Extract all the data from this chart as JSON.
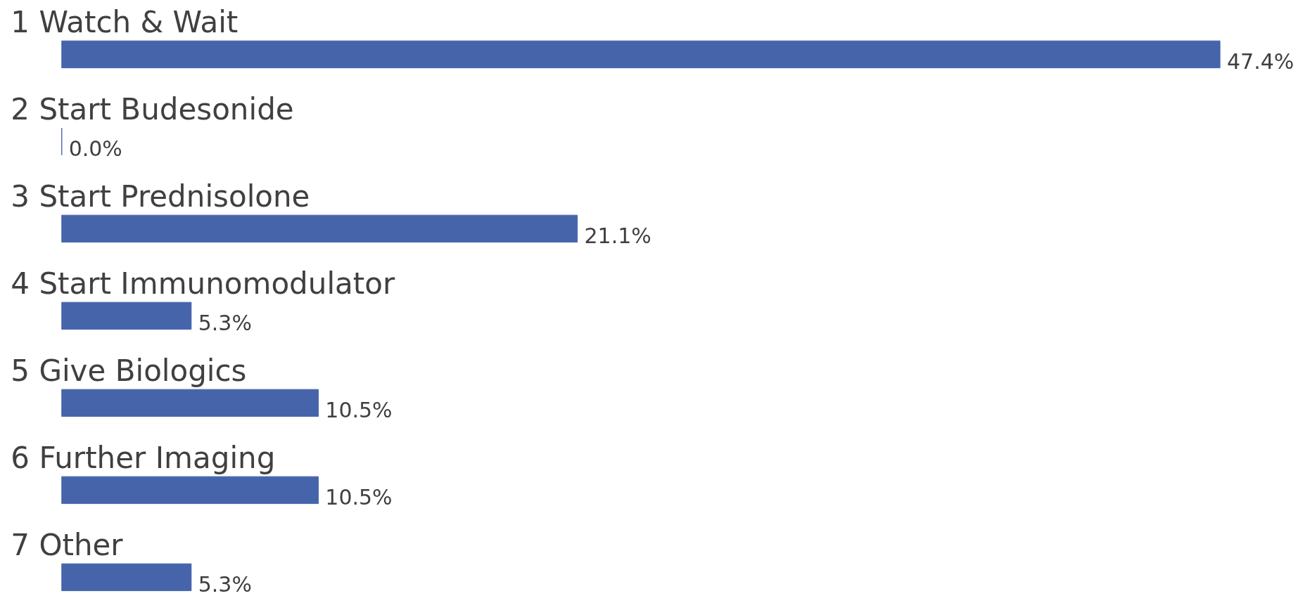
{
  "chart_data": {
    "type": "bar",
    "orientation": "horizontal",
    "categories": [
      "1  Watch & Wait",
      "2  Start Budesonide",
      "3  Start Prednisolone",
      "4  Start Immunomodulator",
      "5  Give Biologics",
      "6  Further Imaging",
      "7  Other"
    ],
    "values": [
      47.4,
      0.0,
      21.1,
      5.3,
      10.5,
      10.5,
      5.3
    ],
    "color": "#4664aa",
    "value_labels": [
      "47.4%",
      "0.0%",
      "21.1%",
      "5.3%",
      "10.5%",
      "10.5%",
      "5.3%"
    ]
  }
}
